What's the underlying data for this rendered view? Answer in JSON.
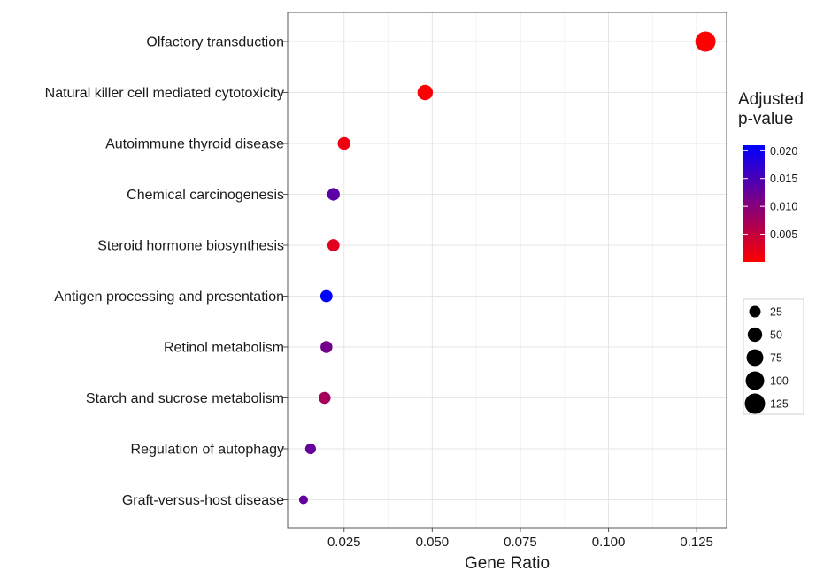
{
  "chart_data": {
    "type": "scatter",
    "title": "",
    "xlabel": "Gene Ratio",
    "ylabel": "",
    "xlim": [
      0.009,
      0.1335
    ],
    "x_ticks": [
      {
        "value": 0.025,
        "label": "0.025"
      },
      {
        "value": 0.05,
        "label": "0.050"
      },
      {
        "value": 0.075,
        "label": "0.075"
      },
      {
        "value": 0.1,
        "label": "0.100"
      },
      {
        "value": 0.125,
        "label": "0.125"
      }
    ],
    "grid": true,
    "categories": [
      "Olfactory transduction",
      "Natural killer cell mediated cytotoxicity",
      "Autoimmune thyroid disease",
      "Chemical carcinogenesis",
      "Steroid hormone biosynthesis",
      "Antigen processing and presentation",
      "Retinol metabolism",
      "Starch and sucrose metabolism",
      "Regulation of autophagy",
      "Graft-versus-host disease"
    ],
    "points": [
      {
        "category": "Olfactory transduction",
        "x": 0.1275,
        "size": 125,
        "padj": 0.0001
      },
      {
        "category": "Natural killer cell mediated cytotoxicity",
        "x": 0.048,
        "size": 60,
        "padj": 0.0003
      },
      {
        "category": "Autoimmune thyroid disease",
        "x": 0.025,
        "size": 35,
        "padj": 0.0012
      },
      {
        "category": "Chemical carcinogenesis",
        "x": 0.022,
        "size": 33,
        "padj": 0.0135
      },
      {
        "category": "Steroid hormone biosynthesis",
        "x": 0.022,
        "size": 30,
        "padj": 0.0025
      },
      {
        "category": "Antigen processing and presentation",
        "x": 0.02,
        "size": 30,
        "padj": 0.021
      },
      {
        "category": "Retinol metabolism",
        "x": 0.02,
        "size": 28,
        "padj": 0.0115
      },
      {
        "category": "Starch and sucrose metabolism",
        "x": 0.0195,
        "size": 28,
        "padj": 0.0075
      },
      {
        "category": "Regulation of autophagy",
        "x": 0.0155,
        "size": 20,
        "padj": 0.0125
      },
      {
        "category": "Graft-versus-host disease",
        "x": 0.0135,
        "size": 10,
        "padj": 0.013
      }
    ],
    "color_legend": {
      "title_lines": [
        "Adjusted",
        "p-value"
      ],
      "min": 0,
      "max": 0.021,
      "low_color": "#ff0000",
      "high_color": "#0000ff",
      "ticks": [
        {
          "value": 0.02,
          "label": "0.020"
        },
        {
          "value": 0.015,
          "label": "0.015"
        },
        {
          "value": 0.01,
          "label": "0.010"
        },
        {
          "value": 0.005,
          "label": "0.005"
        }
      ]
    },
    "size_legend": {
      "entries": [
        {
          "value": 25,
          "label": "25"
        },
        {
          "value": 50,
          "label": "50"
        },
        {
          "value": 75,
          "label": "75"
        },
        {
          "value": 100,
          "label": "100"
        },
        {
          "value": 125,
          "label": "125"
        }
      ]
    },
    "legend_position": "right"
  }
}
